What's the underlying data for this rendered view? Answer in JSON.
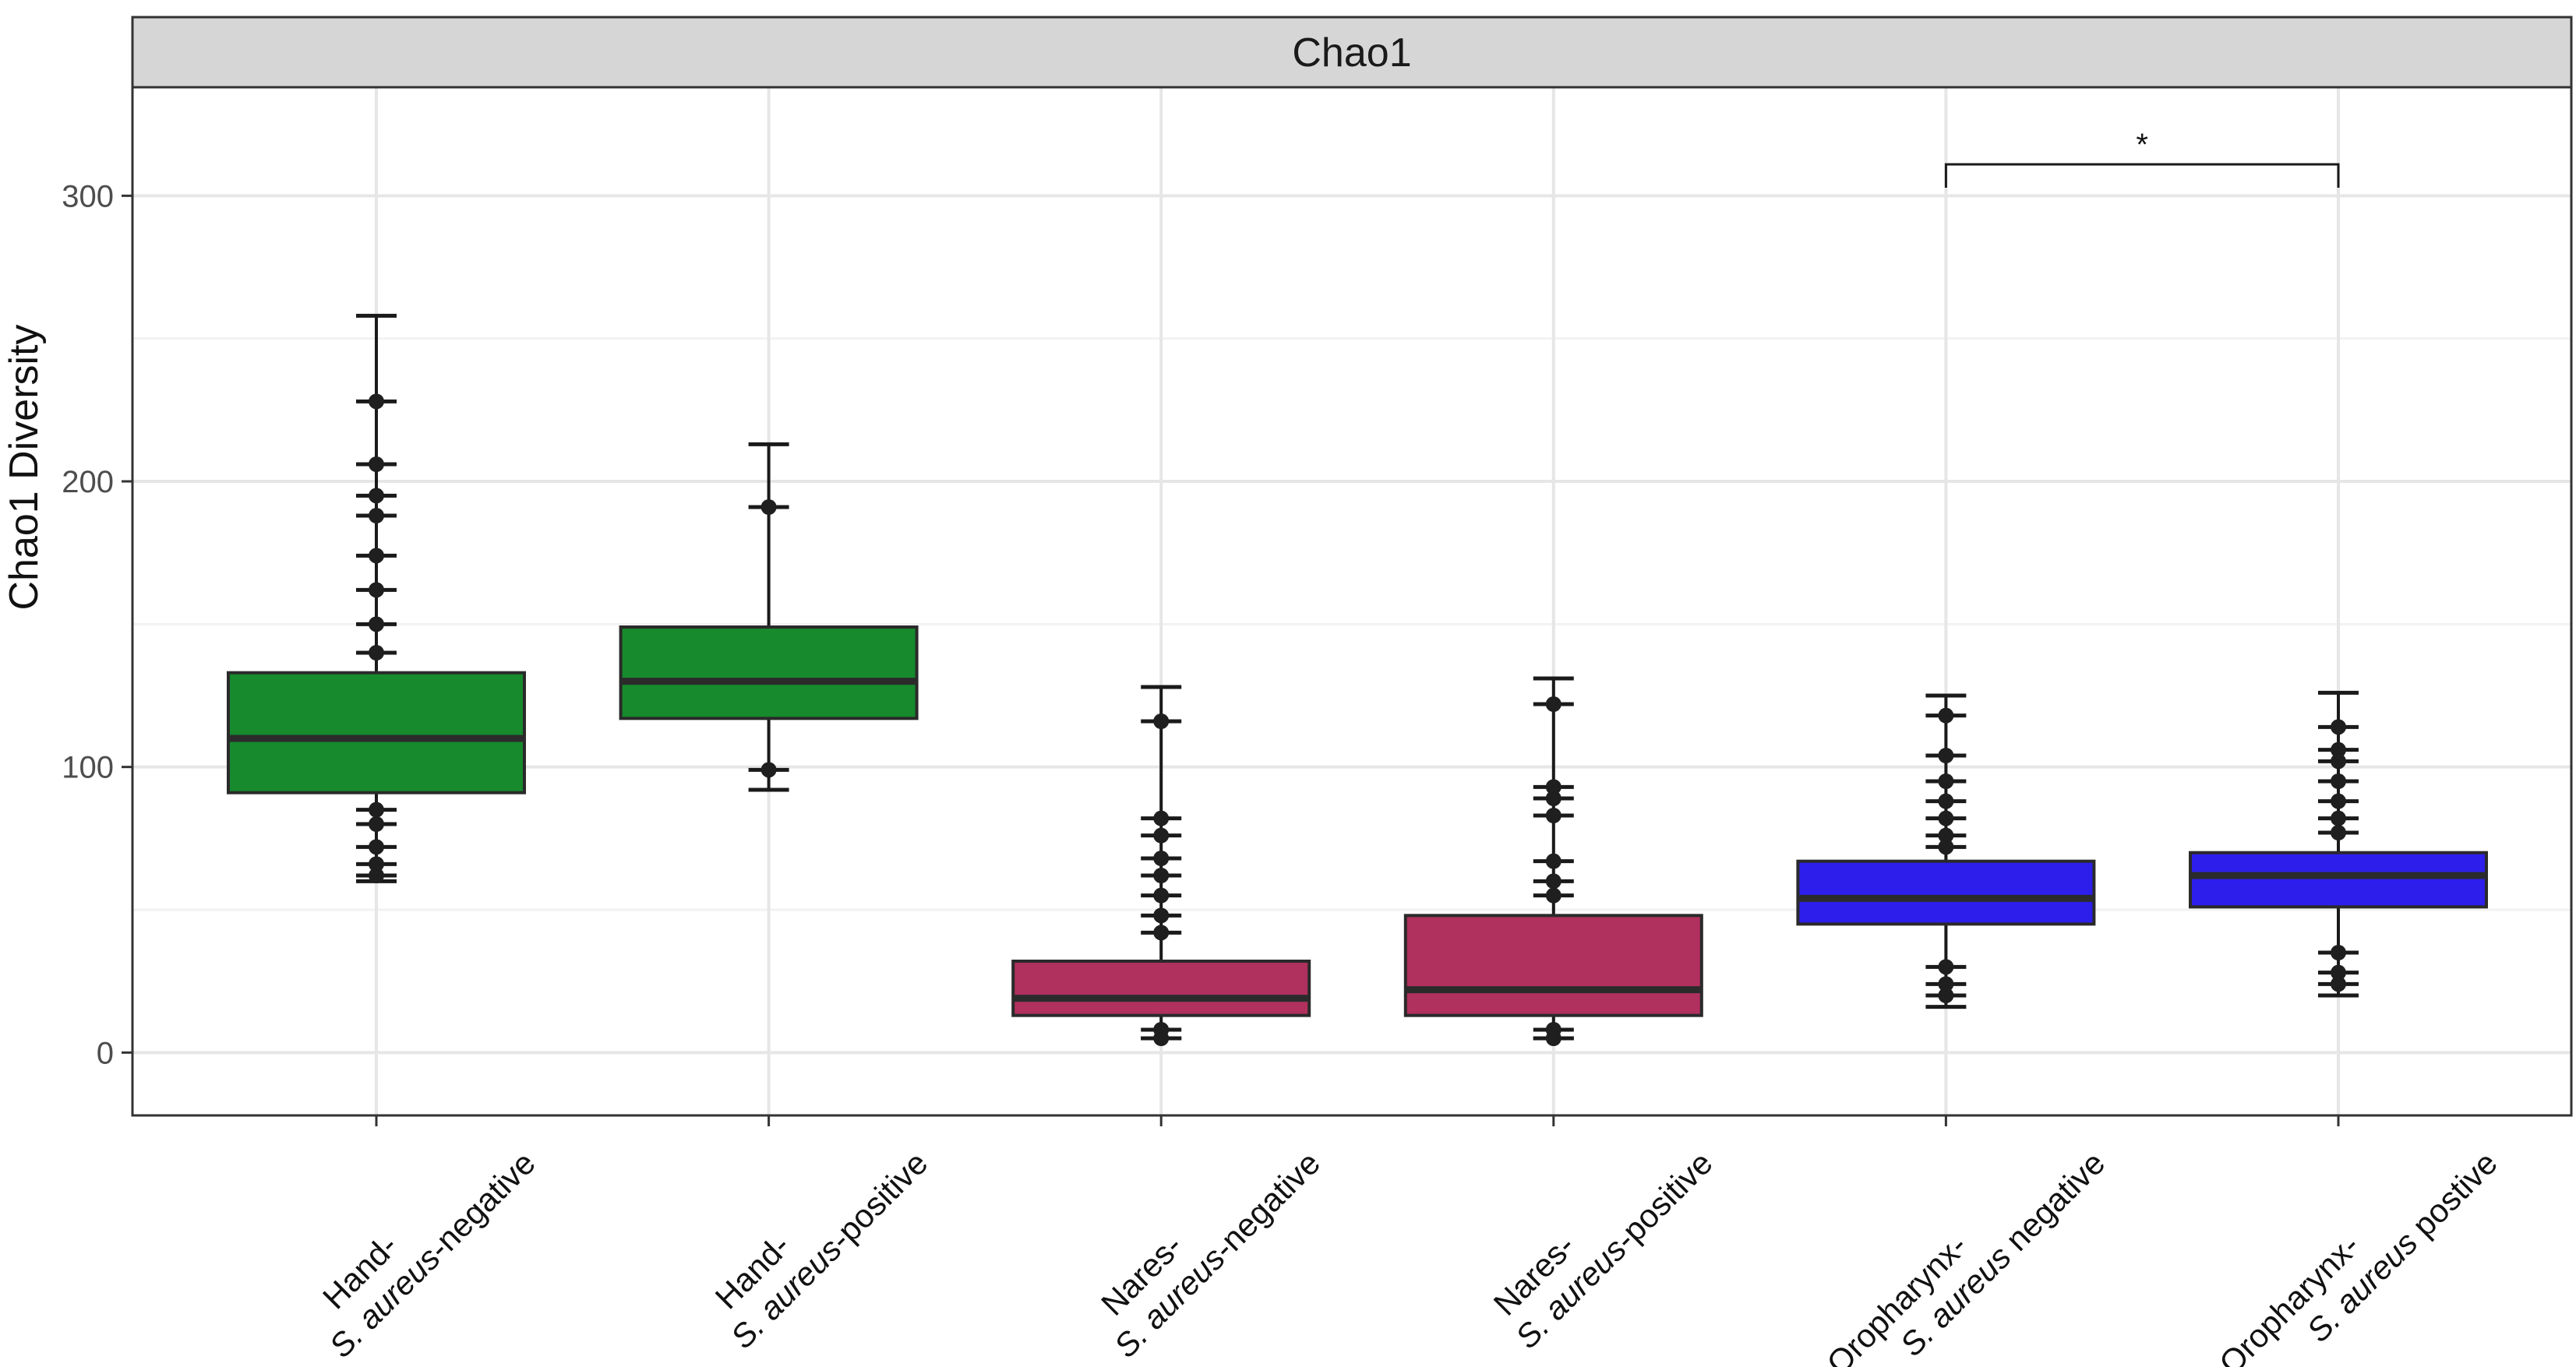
{
  "chart_data": {
    "type": "box",
    "strip_title": "Chao1",
    "ylabel": "Chao1 Diversity",
    "xlabel": "",
    "ylim": [
      -22,
      338
    ],
    "yticks": [
      0,
      100,
      200,
      300
    ],
    "grid": true,
    "categories": [
      {
        "line1": "Hand-",
        "species": "S. aureus",
        "suffix": "-negative",
        "color": "#168a2c",
        "q1": 91,
        "median": 110,
        "q3": 133,
        "whisker_low": 60,
        "whisker_high": 258,
        "outliers": [
          228,
          206,
          195,
          188,
          174,
          162,
          150,
          140,
          85,
          80,
          72,
          66,
          62
        ]
      },
      {
        "line1": "Hand-",
        "species": "S. aureus",
        "suffix": "-positive",
        "color": "#168a2c",
        "q1": 117,
        "median": 130,
        "q3": 149,
        "whisker_low": 92,
        "whisker_high": 213,
        "outliers": [
          191,
          99
        ]
      },
      {
        "line1": "Nares-",
        "species": "S. aureus",
        "suffix": "-negative",
        "color": "#b0305e",
        "q1": 13,
        "median": 19,
        "q3": 32,
        "whisker_low": 5,
        "whisker_high": 128,
        "outliers": [
          116,
          82,
          76,
          68,
          62,
          55,
          48,
          42,
          8,
          5
        ]
      },
      {
        "line1": "Nares-",
        "species": "S. aureus",
        "suffix": "-positive",
        "color": "#b0305e",
        "q1": 13,
        "median": 22,
        "q3": 48,
        "whisker_low": 5,
        "whisker_high": 131,
        "outliers": [
          122,
          93,
          89,
          83,
          67,
          60,
          55,
          8,
          5
        ]
      },
      {
        "line1": "Oropharynx-",
        "species": "S. aureus",
        "suffix": " negative",
        "color": "#2d1eec",
        "q1": 45,
        "median": 54,
        "q3": 67,
        "whisker_low": 16,
        "whisker_high": 125,
        "outliers": [
          118,
          104,
          95,
          88,
          82,
          76,
          72,
          30,
          24,
          20
        ]
      },
      {
        "line1": "Oropharynx-",
        "species": "S. aureus",
        "suffix": " postive",
        "color": "#2d1eec",
        "q1": 51,
        "median": 62,
        "q3": 70,
        "whisker_low": 20,
        "whisker_high": 126,
        "outliers": [
          114,
          106,
          102,
          95,
          88,
          82,
          77,
          35,
          28,
          24
        ]
      }
    ],
    "annotations": [
      {
        "label": "*",
        "from_index": 4,
        "to_index": 5,
        "y": 311
      }
    ]
  }
}
